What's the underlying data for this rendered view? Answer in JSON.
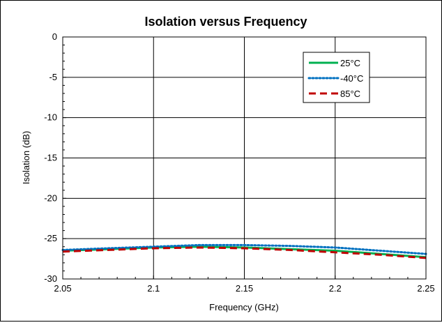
{
  "chart_data": {
    "type": "line",
    "title": "Isolation versus Frequency",
    "xlabel": "Frequency (GHz)",
    "ylabel": "Isolation (dB)",
    "xlim": [
      2.05,
      2.25
    ],
    "ylim": [
      -30,
      0
    ],
    "x_ticks": [
      2.05,
      2.1,
      2.15,
      2.2,
      2.25
    ],
    "x_tick_labels": [
      "2.05",
      "2.1",
      "2.15",
      "2.2",
      "2.25"
    ],
    "y_ticks": [
      0,
      -5,
      -10,
      -15,
      -20,
      -25,
      -30
    ],
    "y_tick_labels": [
      "0",
      "-5",
      "-10",
      "-15",
      "-20",
      "-25",
      "-30"
    ],
    "grid": true,
    "legend_position": "top-right",
    "x": [
      2.05,
      2.075,
      2.1,
      2.125,
      2.15,
      2.175,
      2.2,
      2.225,
      2.25
    ],
    "series": [
      {
        "name": "25°C",
        "color": "#00b050",
        "style": "solid",
        "values": [
          -26.5,
          -26.3,
          -26.1,
          -26.0,
          -26.1,
          -26.3,
          -26.5,
          -26.9,
          -27.3
        ]
      },
      {
        "name": "-40°C",
        "color": "#0070c0",
        "style": "dotted",
        "values": [
          -26.4,
          -26.2,
          -26.0,
          -25.8,
          -25.8,
          -25.9,
          -26.1,
          -26.5,
          -26.9
        ]
      },
      {
        "name": "85°C",
        "color": "#c00000",
        "style": "dashed",
        "values": [
          -26.6,
          -26.4,
          -26.2,
          -26.1,
          -26.2,
          -26.4,
          -26.7,
          -27.0,
          -27.4
        ]
      }
    ]
  }
}
